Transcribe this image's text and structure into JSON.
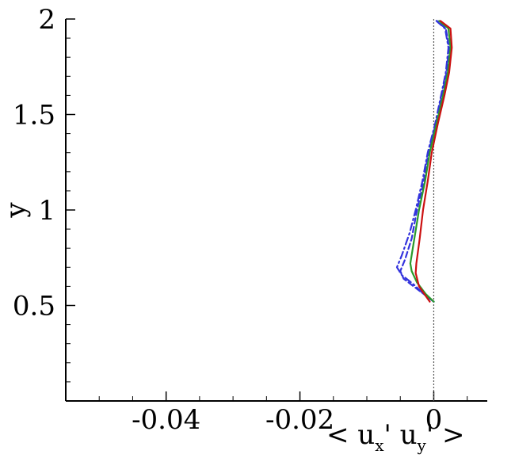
{
  "chart_data": {
    "type": "line",
    "xlabel": {
      "prefix": "< u",
      "sub1": "x",
      "mid": "' u",
      "sub2": "y",
      "suffix": "' >"
    },
    "ylabel": "y",
    "xlim": [
      -0.055,
      0.008
    ],
    "ylim": [
      0.0,
      2.0
    ],
    "x_ticks": [
      -0.04,
      -0.02,
      0
    ],
    "x_tick_labels": [
      "-0.04",
      "-0.02",
      "0"
    ],
    "y_ticks": [
      0.5,
      1.0,
      1.5,
      2.0
    ],
    "y_tick_labels": [
      "0.5",
      "1",
      "1.5",
      "2"
    ],
    "x_minor_step": 0.005,
    "y_minor_step": 0.1,
    "grid": false,
    "reference_line": {
      "x": 0,
      "style": "dotted",
      "color": "#555555"
    },
    "series": [
      {
        "color": "#3333dd",
        "style": "dashed",
        "points": [
          [
            0,
            0.52
          ],
          [
            -0.0015,
            0.56
          ],
          [
            -0.003,
            0.6
          ],
          [
            -0.0045,
            0.64
          ],
          [
            -0.005,
            0.68
          ],
          [
            -0.0043,
            0.74
          ],
          [
            -0.0033,
            0.85
          ],
          [
            -0.0025,
            1.0
          ],
          [
            -0.0015,
            1.15
          ],
          [
            -0.0008,
            1.3
          ],
          [
            0.0003,
            1.45
          ],
          [
            0.0012,
            1.6
          ],
          [
            0.0019,
            1.72
          ],
          [
            0.0023,
            1.85
          ],
          [
            0.0018,
            1.95
          ],
          [
            0.0005,
            1.99
          ]
        ]
      },
      {
        "color": "#3333dd",
        "style": "dashdot",
        "points": [
          [
            0,
            0.52
          ],
          [
            -0.0015,
            0.56
          ],
          [
            -0.003,
            0.61
          ],
          [
            -0.0048,
            0.66
          ],
          [
            -0.0055,
            0.7
          ],
          [
            -0.0048,
            0.76
          ],
          [
            -0.0036,
            0.88
          ],
          [
            -0.0027,
            1.0
          ],
          [
            -0.0017,
            1.15
          ],
          [
            -0.0009,
            1.3
          ],
          [
            0.0002,
            1.45
          ],
          [
            0.0011,
            1.6
          ],
          [
            0.0018,
            1.72
          ],
          [
            0.0022,
            1.85
          ],
          [
            0.0017,
            1.95
          ],
          [
            0.0004,
            1.99
          ]
        ]
      },
      {
        "color": "#2a9a2a",
        "style": "solid",
        "points": [
          [
            0,
            0.52
          ],
          [
            -0.0012,
            0.56
          ],
          [
            -0.0025,
            0.62
          ],
          [
            -0.0033,
            0.68
          ],
          [
            -0.0035,
            0.72
          ],
          [
            -0.0029,
            0.85
          ],
          [
            -0.0022,
            1.0
          ],
          [
            -0.0013,
            1.15
          ],
          [
            -0.0006,
            1.3
          ],
          [
            0.0004,
            1.45
          ],
          [
            0.0014,
            1.6
          ],
          [
            0.0021,
            1.72
          ],
          [
            0.0025,
            1.85
          ],
          [
            0.0022,
            1.95
          ],
          [
            0.0008,
            1.99
          ]
        ]
      },
      {
        "color": "#cc1111",
        "style": "solid",
        "points": [
          [
            -0.0006,
            0.52
          ],
          [
            -0.0012,
            0.55
          ],
          [
            -0.0022,
            0.6
          ],
          [
            -0.0027,
            0.67
          ],
          [
            -0.0026,
            0.72
          ],
          [
            -0.0021,
            0.85
          ],
          [
            -0.0016,
            1.0
          ],
          [
            -0.0009,
            1.15
          ],
          [
            -0.0003,
            1.3
          ],
          [
            0.0006,
            1.45
          ],
          [
            0.0016,
            1.6
          ],
          [
            0.0023,
            1.72
          ],
          [
            0.0027,
            1.85
          ],
          [
            0.0025,
            1.95
          ],
          [
            0.001,
            1.99
          ]
        ]
      }
    ]
  }
}
